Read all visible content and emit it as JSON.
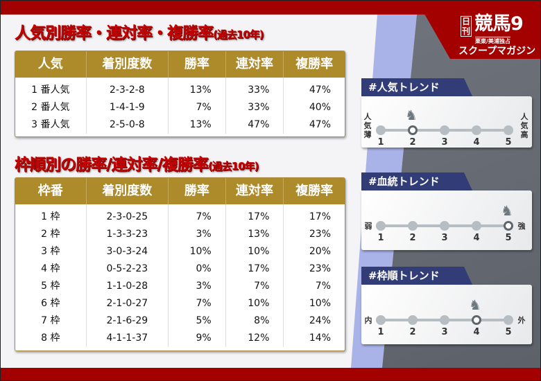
{
  "logo": {
    "nikkan": "日刊",
    "main": "競馬9",
    "sub": "栗東/美浦独占",
    "scoop": "スクープマガジン"
  },
  "popularity": {
    "title": "人気別勝率・連対率・複勝率",
    "title_suffix": "(過去10年)",
    "headers": [
      "人気",
      "着別度数",
      "勝率",
      "連対率",
      "複勝率"
    ],
    "rows": [
      [
        "1 番人気",
        "2-3-2-8",
        "13%",
        "33%",
        "47%"
      ],
      [
        "2 番人気",
        "1-4-1-9",
        "7%",
        "33%",
        "40%"
      ],
      [
        "3 番人気",
        "2-5-0-8",
        "13%",
        "47%",
        "47%"
      ]
    ]
  },
  "gate": {
    "title": "枠順別の勝率/連対率/複勝率",
    "title_suffix": "(過去10年)",
    "headers": [
      "枠番",
      "着別度数",
      "勝率",
      "連対率",
      "複勝率"
    ],
    "rows": [
      [
        "1 枠",
        "2-3-0-25",
        "7%",
        "17%",
        "17%"
      ],
      [
        "2 枠",
        "1-3-3-23",
        "3%",
        "13%",
        "23%"
      ],
      [
        "3 枠",
        "3-0-3-24",
        "10%",
        "10%",
        "20%"
      ],
      [
        "4 枠",
        "0-5-2-23",
        "0%",
        "17%",
        "23%"
      ],
      [
        "5 枠",
        "1-1-0-28",
        "3%",
        "7%",
        "7%"
      ],
      [
        "6 枠",
        "2-1-0-27",
        "7%",
        "10%",
        "10%"
      ],
      [
        "7 枠",
        "2-1-6-29",
        "5%",
        "8%",
        "24%"
      ],
      [
        "8 枠",
        "4-1-1-37",
        "9%",
        "12%",
        "14%"
      ]
    ]
  },
  "trends": [
    {
      "title": "#人気トレンド",
      "left": "人気薄",
      "right": "人気高",
      "scale": [
        "1",
        "2",
        "3",
        "4",
        "5"
      ],
      "selected": 2
    },
    {
      "title": "#血統トレンド",
      "left": "弱",
      "right": "強",
      "scale": [
        "1",
        "2",
        "3",
        "4",
        "5"
      ],
      "selected": 5
    },
    {
      "title": "#枠順トレンド",
      "left": "内",
      "right": "外",
      "scale": [
        "1",
        "2",
        "3",
        "4",
        "5"
      ],
      "selected": 4
    }
  ],
  "icons": {
    "marker": "horse-head-icon"
  },
  "colors": {
    "red": "#a30000",
    "gold": "#ad8a2a",
    "navy": "#323d78"
  }
}
